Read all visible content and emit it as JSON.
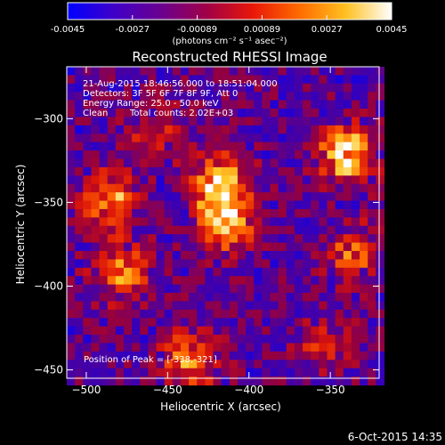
{
  "chart_data": {
    "type": "heatmap",
    "title": "Reconstructed RHESSI Image",
    "xlabel": "Heliocentric X (arcsec)",
    "ylabel": "Heliocentric Y (arcsec)",
    "xlim": [
      -512,
      -320
    ],
    "ylim": [
      -455,
      -269
    ],
    "xticks": [
      -500,
      -450,
      -400,
      -350
    ],
    "yticks": [
      -300,
      -350,
      -400,
      -450
    ],
    "grid": false,
    "colorbar": {
      "position": "top",
      "ticks": [
        "-0.0045",
        "-0.0027",
        "-0.00089",
        "0.00089",
        "0.0027",
        "0.0045"
      ],
      "range": [
        -0.0045,
        0.0045
      ],
      "unit_text": "(photons cm⁻² s⁻¹ asec⁻²)",
      "colors": [
        "#0000ff",
        "#3f00c8",
        "#6a0090",
        "#a00048",
        "#e81808",
        "#ff6a00",
        "#ffc020",
        "#ffffff"
      ]
    },
    "annotations": [
      "21-Aug-2015 18:46:56.000 to 18:51:04.000",
      "Detectors: 3F 5F 6F 7F 8F 9F, Att 0",
      "Energy Range: 25.0 - 50.0 keV",
      "Clean",
      "Total counts: 2.02E+03",
      "Position of Peak = [-338,-321]"
    ],
    "peak": [
      -338,
      -321
    ],
    "sources": [
      {
        "x": -339,
        "y": -321,
        "intensity": 1.0
      },
      {
        "x": -417,
        "y": -340,
        "intensity": 0.9
      },
      {
        "x": -414,
        "y": -362,
        "intensity": 0.75
      },
      {
        "x": -485,
        "y": -348,
        "intensity": 0.75
      },
      {
        "x": -478,
        "y": -392,
        "intensity": 0.65
      },
      {
        "x": -436,
        "y": -444,
        "intensity": 0.7
      },
      {
        "x": -335,
        "y": -380,
        "intensity": 0.55
      },
      {
        "x": -355,
        "y": -435,
        "intensity": 0.45
      },
      {
        "x": -458,
        "y": -309,
        "intensity": 0.4
      }
    ]
  },
  "footer": {
    "date": "6-Oct-2015 14:35"
  }
}
